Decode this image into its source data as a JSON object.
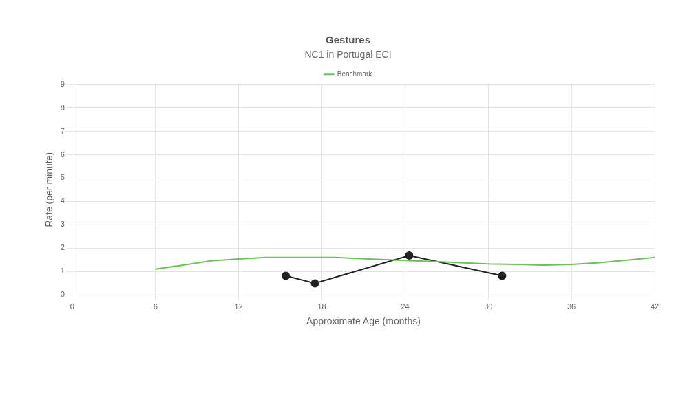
{
  "chart_data": {
    "type": "line",
    "title": "Gestures",
    "subtitle": "NC1 in Portugal ECI",
    "xlabel": "Approximate Age (months)",
    "ylabel": "Rate (per minute)",
    "xlim": [
      0,
      42
    ],
    "xticks": [
      0,
      6,
      12,
      18,
      24,
      30,
      36,
      42
    ],
    "ylim": [
      0,
      9
    ],
    "yticks": [
      0,
      1,
      2,
      3,
      4,
      5,
      6,
      7,
      8,
      9
    ],
    "grid": true,
    "legend": "top",
    "series": [
      {
        "name": "Benchmark",
        "color": "#6dbf5b",
        "marker": "none",
        "x": [
          6,
          8,
          10,
          12,
          14,
          16,
          18,
          19,
          20,
          22,
          24,
          26,
          28,
          30,
          32,
          34,
          36,
          38,
          40,
          42
        ],
        "values": [
          1.1,
          1.27,
          1.45,
          1.53,
          1.6,
          1.6,
          1.6,
          1.6,
          1.57,
          1.52,
          1.47,
          1.42,
          1.37,
          1.32,
          1.3,
          1.27,
          1.3,
          1.37,
          1.48,
          1.6
        ]
      },
      {
        "color": "#222222",
        "marker": "circle",
        "x": [
          15.4,
          17.5,
          24.3,
          31.0
        ],
        "values": [
          0.81,
          0.49,
          1.68,
          0.81
        ]
      }
    ]
  }
}
